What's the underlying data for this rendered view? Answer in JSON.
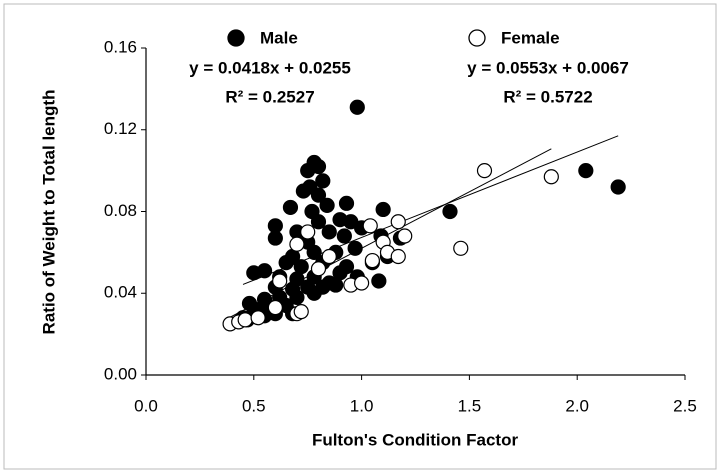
{
  "chart_data": {
    "type": "scatter",
    "x_label": "Fulton's Condition Factor",
    "y_label": "Ratio of Weight to Total length",
    "xlim": [
      0,
      2.5
    ],
    "ylim": [
      0,
      0.16
    ],
    "xticks": [
      {
        "value": 0,
        "label": "0.0"
      },
      0.5,
      {
        "value": 1,
        "label": "1.0"
      },
      1.5,
      {
        "value": 2,
        "label": "2.0"
      },
      2.5
    ],
    "yticks": [
      {
        "value": 0,
        "label": "0.00"
      },
      0.04,
      0.08,
      0.12,
      0.16
    ],
    "series": [
      {
        "name": "Male",
        "color": "#000000",
        "filled": true,
        "equation": "y = 0.0418x + 0.0255",
        "r2": "R² = 0.2527",
        "trend": {
          "slope": 0.0418,
          "intercept": 0.0255,
          "x_start": 0.45,
          "x_end": 2.19
        },
        "x": [
          0.98,
          2.04,
          2.19,
          1.41,
          0.78,
          0.8,
          0.75,
          0.82,
          0.76,
          0.8,
          0.73,
          0.84,
          0.77,
          0.93,
          0.67,
          0.6,
          0.6,
          0.7,
          0.8,
          0.9,
          0.95,
          1.0,
          1.1,
          1.09,
          1.18,
          0.85,
          0.92,
          0.97,
          0.75,
          0.68,
          0.78,
          0.88,
          1.05,
          1.12,
          0.65,
          0.72,
          0.82,
          0.93,
          0.5,
          0.55,
          0.62,
          0.7,
          0.78,
          0.85,
          0.9,
          0.98,
          1.08,
          0.6,
          0.68,
          0.75,
          0.82,
          0.88,
          0.48,
          0.55,
          0.62,
          0.7,
          0.78,
          0.52,
          0.58,
          0.65,
          0.45,
          0.5,
          0.55,
          0.6,
          0.68,
          0.47
        ],
        "values": [
          0.131,
          0.1,
          0.092,
          0.08,
          0.104,
          0.102,
          0.1,
          0.095,
          0.092,
          0.088,
          0.09,
          0.083,
          0.08,
          0.084,
          0.082,
          0.073,
          0.067,
          0.07,
          0.075,
          0.076,
          0.075,
          0.072,
          0.081,
          0.068,
          0.067,
          0.07,
          0.068,
          0.062,
          0.065,
          0.058,
          0.06,
          0.06,
          0.055,
          0.058,
          0.055,
          0.053,
          0.055,
          0.053,
          0.05,
          0.051,
          0.048,
          0.047,
          0.048,
          0.045,
          0.05,
          0.048,
          0.046,
          0.043,
          0.042,
          0.043,
          0.043,
          0.044,
          0.035,
          0.037,
          0.038,
          0.038,
          0.04,
          0.032,
          0.033,
          0.034,
          0.028,
          0.03,
          0.029,
          0.03,
          0.03,
          0.027
        ]
      },
      {
        "name": "Female",
        "color": "#000000",
        "filled": false,
        "equation": "y = 0.0553x + 0.0067",
        "r2": "R² = 0.5722",
        "trend": {
          "slope": 0.0553,
          "intercept": 0.0067,
          "x_start": 0.39,
          "x_end": 1.88
        },
        "x": [
          0.39,
          0.43,
          0.46,
          0.52,
          0.6,
          0.7,
          0.72,
          0.62,
          0.7,
          0.75,
          0.95,
          1.0,
          1.04,
          1.1,
          1.12,
          1.17,
          1.17,
          1.2,
          1.46,
          1.57,
          1.88,
          0.85,
          0.8,
          1.05
        ],
        "values": [
          0.025,
          0.026,
          0.027,
          0.028,
          0.033,
          0.03,
          0.031,
          0.046,
          0.064,
          0.07,
          0.044,
          0.045,
          0.073,
          0.065,
          0.06,
          0.075,
          0.058,
          0.068,
          0.062,
          0.1,
          0.097,
          0.058,
          0.052,
          0.056
        ]
      }
    ]
  }
}
